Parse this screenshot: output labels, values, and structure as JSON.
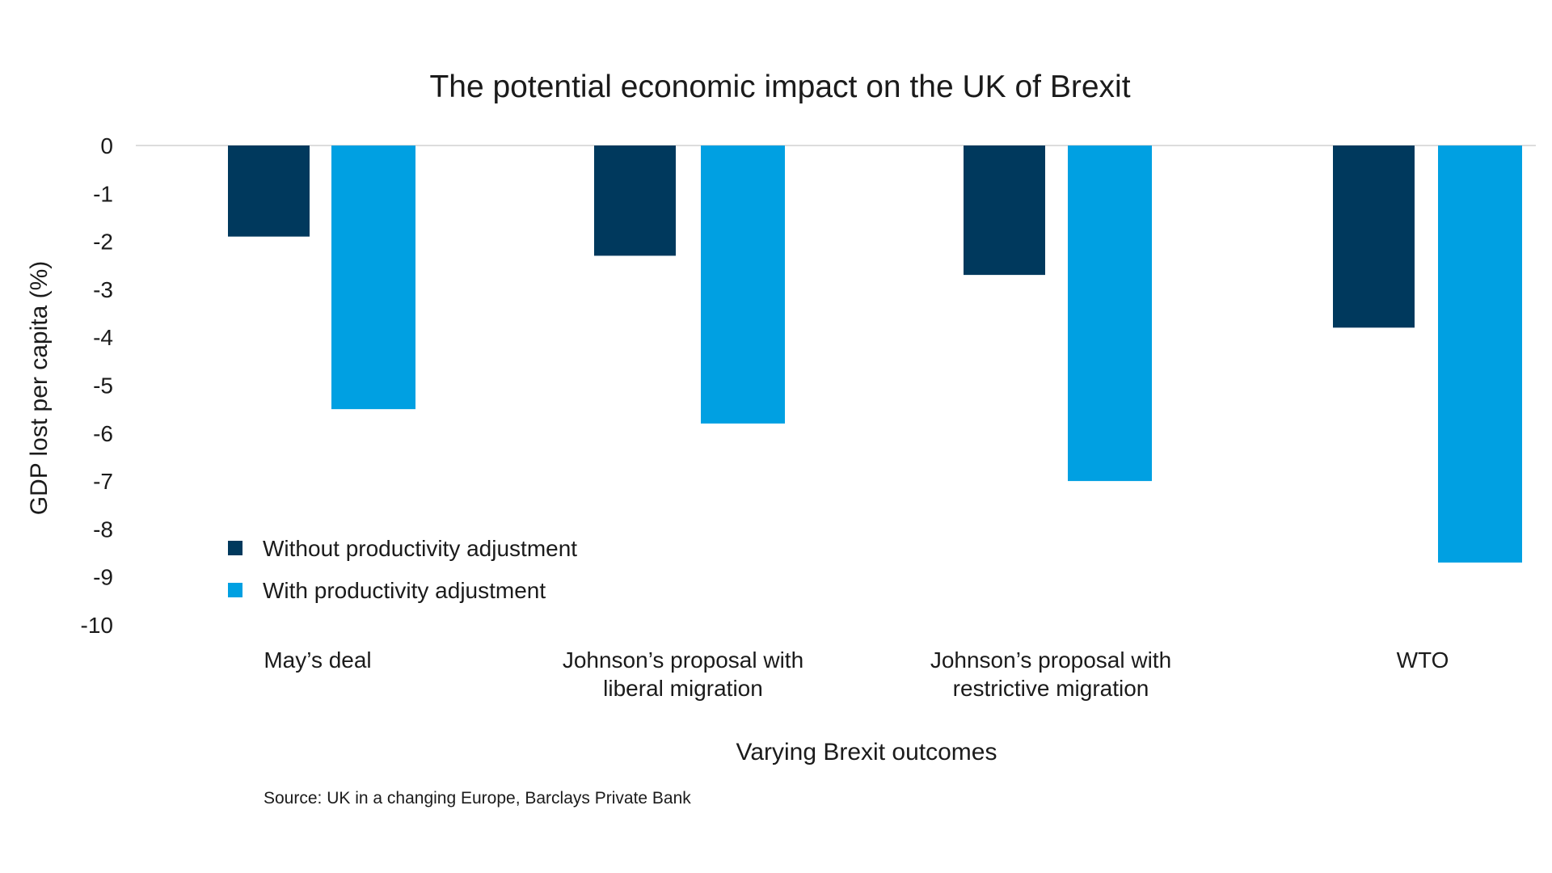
{
  "colors": {
    "series_dark": "#00395d",
    "series_light": "#00a0e2",
    "baseline": "#dddddd"
  },
  "source": "Source: UK in a changing Europe, Barclays Private Bank",
  "chart_data": {
    "type": "bar",
    "title": "The potential economic impact on the UK of Brexit",
    "xlabel": "Varying Brexit outcomes",
    "ylabel": "GDP lost per capita (%)",
    "ylim": [
      -10,
      0
    ],
    "yticks": [
      0,
      -1,
      -2,
      -3,
      -4,
      -5,
      -6,
      -7,
      -8,
      -9,
      -10
    ],
    "grid": false,
    "legend_position": "bottom-left",
    "categories": [
      [
        "May’s deal"
      ],
      [
        "Johnson’s proposal with",
        "liberal migration"
      ],
      [
        "Johnson’s proposal with",
        "restrictive migration"
      ],
      [
        "WTO"
      ]
    ],
    "series": [
      {
        "name": "Without productivity adjustment",
        "color": "#00395d",
        "values": [
          -1.9,
          -2.3,
          -2.7,
          -3.8
        ]
      },
      {
        "name": "With productivity adjustment",
        "color": "#00a0e2",
        "values": [
          -5.5,
          -5.8,
          -7.0,
          -8.7
        ]
      }
    ]
  }
}
